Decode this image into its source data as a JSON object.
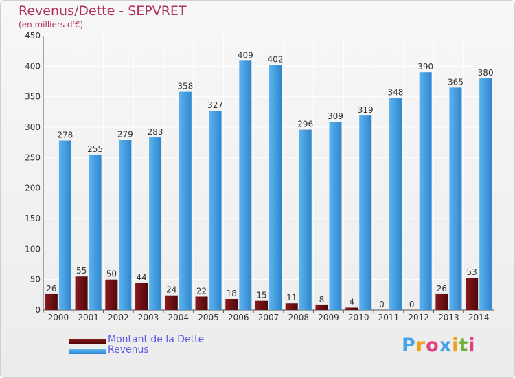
{
  "title": "Revenus/Dette - SEPVRET",
  "subtitle": "(en milliers d'€)",
  "legend": [
    {
      "label": "Montant de la Dette",
      "color": "#6b0f12"
    },
    {
      "label": "Revenus",
      "color": "#4aa3e6"
    }
  ],
  "logo": "Proxiti",
  "colors": {
    "debt": "#6b0f12",
    "revenue": "#4aa3e6",
    "title": "#b03060"
  },
  "chart_data": {
    "type": "bar",
    "categories": [
      "2000",
      "2001",
      "2002",
      "2003",
      "2004",
      "2005",
      "2006",
      "2007",
      "2008",
      "2009",
      "2010",
      "2011",
      "2012",
      "2013",
      "2014"
    ],
    "series": [
      {
        "name": "Montant de la Dette",
        "values": [
          26,
          55,
          50,
          44,
          24,
          22,
          18,
          15,
          11,
          8,
          4,
          0,
          0,
          26,
          53
        ]
      },
      {
        "name": "Revenus",
        "values": [
          278,
          255,
          279,
          283,
          358,
          327,
          409,
          402,
          296,
          309,
          319,
          348,
          390,
          365,
          380
        ]
      }
    ],
    "ylim": [
      0,
      450
    ],
    "yticks": [
      0,
      50,
      100,
      150,
      200,
      250,
      300,
      350,
      400,
      450
    ],
    "grid": true,
    "legend_position": "bottom-left"
  }
}
